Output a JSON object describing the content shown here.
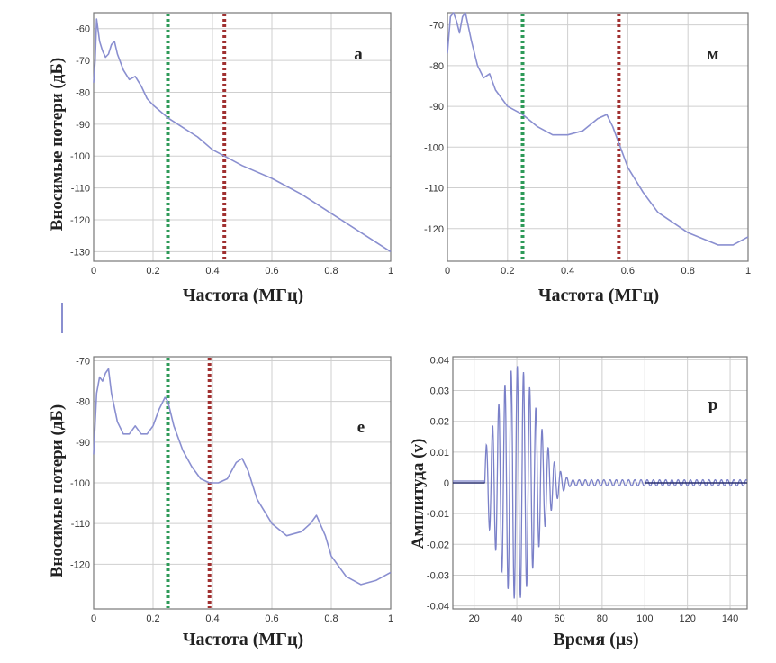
{
  "chart_data": [
    {
      "panel": "a",
      "type": "line",
      "panel_label": "a",
      "xlabel": "Частота (МГц)",
      "ylabel": "Вносимые потери (дБ)",
      "xlim": [
        0,
        1
      ],
      "ylim": [
        -133,
        -55
      ],
      "xticks": [
        0,
        0.2,
        0.4,
        0.6,
        0.8,
        1
      ],
      "xtick_labels": [
        "0",
        "0.2",
        "0.4",
        "0.6",
        "0.8",
        "1"
      ],
      "yticks": [
        -60,
        -70,
        -80,
        -90,
        -100,
        -110,
        -120,
        -130
      ],
      "ytick_labels": [
        "-60",
        "-70",
        "-80",
        "-90",
        "-100",
        "-110",
        "-120",
        "-130"
      ],
      "markers": [
        {
          "x": 0.25,
          "color": "#2e9a58"
        },
        {
          "x": 0.44,
          "color": "#a03030"
        }
      ],
      "series": [
        {
          "name": "insertion-loss",
          "color": "#8a8fd0",
          "x": [
            0,
            0.005,
            0.01,
            0.02,
            0.03,
            0.04,
            0.05,
            0.06,
            0.07,
            0.08,
            0.1,
            0.12,
            0.14,
            0.16,
            0.18,
            0.2,
            0.25,
            0.3,
            0.35,
            0.4,
            0.44,
            0.5,
            0.6,
            0.7,
            0.8,
            0.9,
            1.0
          ],
          "y": [
            -77,
            -70,
            -57,
            -64,
            -67,
            -69,
            -68,
            -65,
            -64,
            -68,
            -73,
            -76,
            -75,
            -78,
            -82,
            -84,
            -88,
            -91,
            -94,
            -98,
            -100,
            -103,
            -107,
            -112,
            -118,
            -124,
            -130
          ]
        }
      ]
    },
    {
      "panel": "m",
      "type": "line",
      "panel_label": "м",
      "xlabel": "Частота (МГц)",
      "ylabel": "",
      "xlim": [
        0,
        1
      ],
      "ylim": [
        -128,
        -67
      ],
      "xticks": [
        0,
        0.2,
        0.4,
        0.6,
        0.8,
        1
      ],
      "xtick_labels": [
        "0",
        "0.2",
        "0.4",
        "0.6",
        "0.8",
        "1"
      ],
      "yticks": [
        -70,
        -80,
        -90,
        -100,
        -110,
        -120
      ],
      "ytick_labels": [
        "-70",
        "-80",
        "-90",
        "-100",
        "-110",
        "-120"
      ],
      "markers": [
        {
          "x": 0.25,
          "color": "#2e9a58"
        },
        {
          "x": 0.57,
          "color": "#a03030"
        }
      ],
      "series": [
        {
          "name": "insertion-loss",
          "color": "#8a8fd0",
          "x": [
            0,
            0.01,
            0.02,
            0.03,
            0.04,
            0.05,
            0.06,
            0.08,
            0.1,
            0.12,
            0.14,
            0.16,
            0.2,
            0.25,
            0.3,
            0.35,
            0.4,
            0.45,
            0.5,
            0.53,
            0.55,
            0.57,
            0.6,
            0.65,
            0.7,
            0.8,
            0.9,
            0.95,
            1.0
          ],
          "y": [
            -77,
            -68,
            -67,
            -69,
            -72,
            -68,
            -67,
            -74,
            -80,
            -83,
            -82,
            -86,
            -90,
            -92,
            -95,
            -97,
            -97,
            -96,
            -93,
            -92,
            -95,
            -99,
            -105,
            -111,
            -116,
            -121,
            -124,
            -124,
            -122
          ]
        }
      ]
    },
    {
      "panel": "e",
      "type": "line",
      "panel_label": "е",
      "xlabel": "Частота (МГц)",
      "ylabel": "Вносимые потери (дБ)",
      "xlim": [
        0,
        1
      ],
      "ylim": [
        -131,
        -69
      ],
      "xticks": [
        0,
        0.2,
        0.4,
        0.6,
        0.8,
        1
      ],
      "xtick_labels": [
        "0",
        "0.2",
        "0.4",
        "0.6",
        "0.8",
        "1"
      ],
      "yticks": [
        -70,
        -80,
        -90,
        -100,
        -110,
        -120
      ],
      "ytick_labels": [
        "-70",
        "-80",
        "-90",
        "-100",
        "-110",
        "-120"
      ],
      "markers": [
        {
          "x": 0.25,
          "color": "#2e9a58"
        },
        {
          "x": 0.39,
          "color": "#a03030"
        }
      ],
      "series": [
        {
          "name": "insertion-loss",
          "color": "#8a8fd0",
          "x": [
            0,
            0.01,
            0.02,
            0.03,
            0.04,
            0.05,
            0.06,
            0.08,
            0.1,
            0.12,
            0.14,
            0.16,
            0.18,
            0.2,
            0.22,
            0.24,
            0.25,
            0.27,
            0.3,
            0.33,
            0.36,
            0.39,
            0.42,
            0.45,
            0.48,
            0.5,
            0.52,
            0.55,
            0.6,
            0.65,
            0.7,
            0.73,
            0.75,
            0.78,
            0.8,
            0.85,
            0.9,
            0.95,
            1.0
          ],
          "y": [
            -93,
            -78,
            -74,
            -75,
            -73,
            -72,
            -78,
            -85,
            -88,
            -88,
            -86,
            -88,
            -88,
            -86,
            -82,
            -79,
            -80,
            -86,
            -92,
            -96,
            -99,
            -100,
            -100,
            -99,
            -95,
            -94,
            -97,
            -104,
            -110,
            -113,
            -112,
            -110,
            -108,
            -113,
            -118,
            -123,
            -125,
            -124,
            -122
          ]
        }
      ]
    },
    {
      "panel": "p",
      "type": "line",
      "panel_label": "р",
      "xlabel": "Время (μs)",
      "ylabel": "Амплитуда (v)",
      "xlim": [
        10,
        148
      ],
      "ylim": [
        -0.041,
        0.041
      ],
      "xticks": [
        20,
        40,
        60,
        80,
        100,
        120,
        140
      ],
      "xtick_labels": [
        "20",
        "40",
        "60",
        "80",
        "100",
        "120",
        "140"
      ],
      "yticks": [
        0.04,
        0.03,
        0.02,
        0.01,
        0,
        -0.01,
        -0.02,
        -0.03,
        -0.04
      ],
      "ytick_labels": [
        "0.04",
        "0.03",
        "0.02",
        "0.01",
        "0",
        "-0.01",
        "-0.02",
        "-0.03",
        "-0.04"
      ],
      "markers": [],
      "series": [
        {
          "name": "signal",
          "color": "#7a80c8",
          "kind": "burst",
          "t_start": 10,
          "t_end": 148,
          "burst_center_us": 40,
          "burst_amplitude": 0.038,
          "burst_sigma_us": 9.5,
          "period_us": 2.9,
          "tail_level": 0.001
        }
      ]
    }
  ]
}
